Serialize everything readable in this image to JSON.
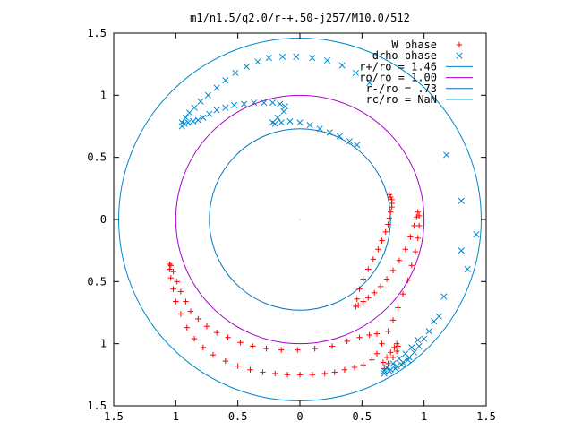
{
  "chart_data": {
    "type": "scatter",
    "title": "m1/n1.5/q2.0/r-+.50-j257/M10.0/512",
    "xlabel": "",
    "ylabel": "",
    "xlim": [
      -1.5,
      1.5
    ],
    "ylim": [
      -1.5,
      1.5
    ],
    "x_ticks": [
      -1.5,
      -1,
      -0.5,
      0,
      0.5,
      1,
      1.5
    ],
    "x_tick_labels": [
      "1.5",
      "1",
      "0.5",
      "0",
      "0.5",
      "1",
      "1.5"
    ],
    "y_ticks": [
      1.5,
      1,
      0.5,
      0,
      -0.5,
      -1,
      -1.5
    ],
    "y_tick_labels": [
      "1.5",
      "1",
      "0.5",
      "0",
      "0.5",
      "1",
      "1.5"
    ],
    "grid": false,
    "legend_position": "top-right",
    "series": [
      {
        "name": "W phase",
        "marker": "+",
        "color": "#ff0000",
        "points": [
          [
            0.72,
            0.2
          ],
          [
            0.73,
            0.18
          ],
          [
            0.74,
            0.16
          ],
          [
            0.74,
            0.13
          ],
          [
            0.74,
            0.1
          ],
          [
            0.73,
            0.06
          ],
          [
            0.72,
            0.01
          ],
          [
            0.71,
            -0.04
          ],
          [
            0.69,
            -0.1
          ],
          [
            0.66,
            -0.17
          ],
          [
            0.63,
            -0.24
          ],
          [
            0.59,
            -0.32
          ],
          [
            0.55,
            -0.4
          ],
          [
            0.51,
            -0.48
          ],
          [
            0.48,
            -0.56
          ],
          [
            0.46,
            -0.64
          ],
          [
            0.45,
            -0.7
          ],
          [
            0.47,
            -0.69
          ],
          [
            0.51,
            -0.66
          ],
          [
            0.55,
            -0.63
          ],
          [
            0.6,
            -0.59
          ],
          [
            0.65,
            -0.54
          ],
          [
            0.7,
            -0.48
          ],
          [
            0.75,
            -0.41
          ],
          [
            0.8,
            -0.33
          ],
          [
            0.85,
            -0.24
          ],
          [
            0.89,
            -0.14
          ],
          [
            0.92,
            -0.05
          ],
          [
            0.94,
            0.02
          ],
          [
            0.95,
            0.06
          ],
          [
            0.96,
            0.03
          ],
          [
            0.96,
            -0.05
          ],
          [
            0.95,
            -0.15
          ],
          [
            0.93,
            -0.26
          ],
          [
            0.9,
            -0.37
          ],
          [
            0.87,
            -0.49
          ],
          [
            0.83,
            -0.6
          ],
          [
            0.79,
            -0.71
          ],
          [
            0.75,
            -0.81
          ],
          [
            0.71,
            -0.9
          ],
          [
            0.66,
            -1.0
          ],
          [
            0.62,
            -1.08
          ],
          [
            0.58,
            -1.13
          ],
          [
            0.51,
            -1.17
          ],
          [
            0.44,
            -1.19
          ],
          [
            0.36,
            -1.21
          ],
          [
            0.28,
            -1.23
          ],
          [
            0.2,
            -1.24
          ],
          [
            0.1,
            -1.25
          ],
          [
            0.0,
            -1.25
          ],
          [
            -0.1,
            -1.25
          ],
          [
            -0.2,
            -1.24
          ],
          [
            -0.3,
            -1.23
          ],
          [
            -0.4,
            -1.21
          ],
          [
            -0.5,
            -1.18
          ],
          [
            -0.6,
            -1.14
          ],
          [
            -0.7,
            -1.09
          ],
          [
            -0.78,
            -1.03
          ],
          [
            -0.85,
            -0.96
          ],
          [
            -0.91,
            -0.87
          ],
          [
            -0.96,
            -0.76
          ],
          [
            -1.0,
            -0.66
          ],
          [
            -1.02,
            -0.56
          ],
          [
            -1.04,
            -0.47
          ],
          [
            -1.05,
            -0.4
          ],
          [
            -1.05,
            -0.36
          ],
          [
            -1.04,
            -0.37
          ],
          [
            -1.02,
            -0.42
          ],
          [
            -0.99,
            -0.5
          ],
          [
            -0.96,
            -0.58
          ],
          [
            -0.92,
            -0.66
          ],
          [
            -0.88,
            -0.74
          ],
          [
            -0.82,
            -0.8
          ],
          [
            -0.75,
            -0.86
          ],
          [
            -0.67,
            -0.91
          ],
          [
            -0.58,
            -0.95
          ],
          [
            -0.48,
            -0.99
          ],
          [
            -0.38,
            -1.02
          ],
          [
            -0.27,
            -1.04
          ],
          [
            -0.15,
            -1.05
          ],
          [
            -0.02,
            -1.05
          ],
          [
            0.12,
            -1.04
          ],
          [
            0.26,
            -1.02
          ],
          [
            0.38,
            -0.98
          ],
          [
            0.48,
            -0.95
          ],
          [
            0.56,
            -0.93
          ],
          [
            0.62,
            -0.92
          ],
          [
            0.67,
            -1.15
          ],
          [
            0.7,
            -1.11
          ],
          [
            0.73,
            -1.07
          ],
          [
            0.76,
            -1.03
          ],
          [
            0.78,
            -1.0
          ],
          [
            0.79,
            -1.02
          ],
          [
            0.78,
            -1.06
          ],
          [
            0.75,
            -1.11
          ],
          [
            0.71,
            -1.16
          ],
          [
            0.68,
            -1.2
          ]
        ]
      },
      {
        "name": "drho phase",
        "marker": "x",
        "color": "#0088cc",
        "points": [
          [
            -0.95,
            0.75
          ],
          [
            -0.93,
            0.77
          ],
          [
            -0.9,
            0.78
          ],
          [
            -0.86,
            0.79
          ],
          [
            -0.82,
            0.8
          ],
          [
            -0.78,
            0.82
          ],
          [
            -0.73,
            0.85
          ],
          [
            -0.67,
            0.88
          ],
          [
            -0.6,
            0.9
          ],
          [
            -0.53,
            0.92
          ],
          [
            -0.45,
            0.93
          ],
          [
            -0.37,
            0.94
          ],
          [
            -0.29,
            0.94
          ],
          [
            -0.22,
            0.94
          ],
          [
            -0.16,
            0.93
          ],
          [
            -0.12,
            0.91
          ],
          [
            -0.13,
            0.87
          ],
          [
            -0.18,
            0.82
          ],
          [
            -0.22,
            0.78
          ],
          [
            -0.2,
            0.77
          ],
          [
            -0.15,
            0.78
          ],
          [
            -0.08,
            0.79
          ],
          [
            0.0,
            0.78
          ],
          [
            0.08,
            0.76
          ],
          [
            0.16,
            0.73
          ],
          [
            0.24,
            0.7
          ],
          [
            0.32,
            0.67
          ],
          [
            0.4,
            0.63
          ],
          [
            0.46,
            0.6
          ],
          [
            -0.95,
            0.78
          ],
          [
            -0.92,
            0.82
          ],
          [
            -0.89,
            0.86
          ],
          [
            -0.85,
            0.9
          ],
          [
            -0.8,
            0.95
          ],
          [
            -0.74,
            1.0
          ],
          [
            -0.67,
            1.06
          ],
          [
            -0.6,
            1.12
          ],
          [
            -0.52,
            1.18
          ],
          [
            -0.43,
            1.23
          ],
          [
            -0.34,
            1.27
          ],
          [
            -0.25,
            1.3
          ],
          [
            -0.14,
            1.31
          ],
          [
            -0.03,
            1.31
          ],
          [
            0.1,
            1.3
          ],
          [
            0.22,
            1.28
          ],
          [
            0.34,
            1.24
          ],
          [
            0.45,
            1.18
          ],
          [
            0.56,
            1.1
          ],
          [
            1.18,
            0.52
          ],
          [
            1.3,
            0.15
          ],
          [
            1.42,
            -0.12
          ],
          [
            1.35,
            -0.4
          ],
          [
            1.3,
            -0.25
          ],
          [
            1.16,
            -0.62
          ],
          [
            1.12,
            -0.78
          ],
          [
            1.08,
            -0.82
          ],
          [
            1.04,
            -0.9
          ],
          [
            1.0,
            -0.96
          ],
          [
            0.96,
            -1.02
          ],
          [
            0.92,
            -1.07
          ],
          [
            0.88,
            -1.11
          ],
          [
            0.83,
            -1.15
          ],
          [
            0.78,
            -1.18
          ],
          [
            0.73,
            -1.21
          ],
          [
            0.68,
            -1.22
          ],
          [
            0.7,
            -1.19
          ],
          [
            0.75,
            -1.16
          ],
          [
            0.8,
            -1.12
          ],
          [
            0.85,
            -1.08
          ],
          [
            0.9,
            -1.03
          ],
          [
            0.95,
            -0.97
          ],
          [
            0.68,
            -1.24
          ],
          [
            0.72,
            -1.22
          ],
          [
            0.77,
            -1.2
          ],
          [
            0.82,
            -1.17
          ],
          [
            0.87,
            -1.13
          ]
        ]
      },
      {
        "name": "r+/ro = 1.46",
        "kind": "circle",
        "radius": 1.46,
        "color": "#0088cc"
      },
      {
        "name": "ro/ro = 1.00",
        "kind": "circle",
        "radius": 1.0,
        "color": "#aa00cc"
      },
      {
        "name": "r-/ro = .73",
        "kind": "circle",
        "radius": 0.73,
        "color": "#0077bb"
      },
      {
        "name": "rc/ro = NaN",
        "kind": "circle",
        "radius": null,
        "color": "#00bbdd"
      }
    ]
  }
}
